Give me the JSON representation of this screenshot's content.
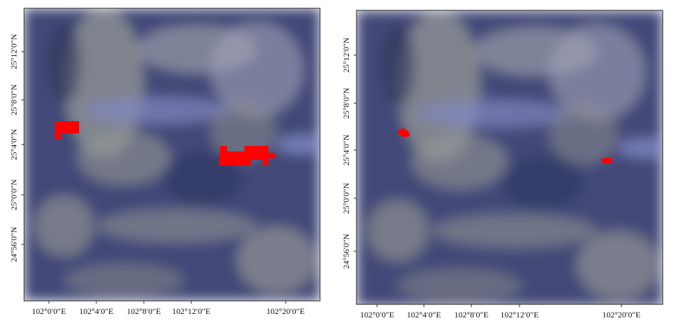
{
  "panels": [
    {
      "x_ticks": [
        "102°0′0″E",
        "102°4′0″E",
        "102°8′0″E",
        "102°12′0″E",
        "102°20′0″E"
      ],
      "y_ticks": [
        "25°12′0″N",
        "25°8′0″N",
        "25°4′0″N",
        "25°0′0″N",
        "24°56′0″N"
      ]
    },
    {
      "x_ticks": [
        "102°0′0″E",
        "102°4′0″E",
        "102°8′0″E",
        "102°12′0″E",
        "102°20′0″E"
      ],
      "y_ticks": [
        "25°12′0″N",
        "25°8′0″N",
        "25°4′0″N",
        "25°0′0″N",
        "24°56′0″N"
      ]
    }
  ]
}
